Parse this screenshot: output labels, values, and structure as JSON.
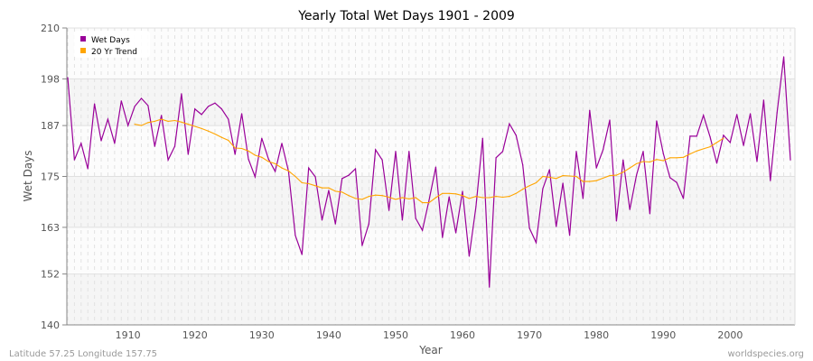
{
  "chart_data": {
    "type": "line",
    "title": "Yearly Total Wet Days 1901 - 2009",
    "xlabel": "Year",
    "ylabel": "Wet Days",
    "ylim": [
      140,
      210
    ],
    "xlim": [
      1901,
      2009
    ],
    "yticks": [
      140,
      152,
      163,
      175,
      187,
      198,
      210
    ],
    "xticks": [
      1910,
      1920,
      1930,
      1940,
      1950,
      1960,
      1970,
      1980,
      1990,
      2000
    ],
    "grid": true,
    "legend_position": "top-left",
    "series": [
      {
        "name": "Wet Days",
        "color": "#990099",
        "x_start": 1901,
        "values": [
          198.3,
          178.9,
          182.8,
          176.8,
          192.1,
          183.4,
          188.5,
          182.8,
          192.8,
          187.0,
          191.5,
          193.4,
          191.7,
          182.1,
          189.4,
          178.9,
          182.1,
          194.5,
          180.2,
          190.9,
          189.6,
          191.5,
          192.3,
          190.9,
          188.5,
          180.2,
          189.8,
          179.1,
          174.9,
          184.0,
          179.1,
          176.2,
          182.8,
          176.2,
          161.1,
          156.6,
          177.0,
          174.9,
          164.7,
          171.7,
          163.8,
          174.5,
          175.3,
          176.8,
          158.7,
          163.8,
          181.3,
          178.9,
          167.0,
          180.9,
          164.7,
          180.9,
          165.1,
          162.3,
          169.4,
          177.2,
          160.6,
          170.2,
          161.7,
          171.5,
          156.2,
          167.9,
          184.0,
          148.9,
          179.4,
          180.9,
          187.4,
          184.7,
          177.7,
          162.8,
          159.4,
          172.1,
          176.6,
          163.2,
          173.4,
          161.1,
          180.9,
          169.8,
          190.6,
          177.0,
          181.3,
          188.3,
          164.5,
          178.9,
          167.2,
          175.3,
          180.9,
          166.2,
          188.1,
          180.4,
          174.7,
          173.6,
          169.8,
          184.5,
          184.5,
          189.4,
          184.3,
          178.1,
          184.7,
          183.0,
          189.6,
          182.3,
          189.8,
          178.5,
          193.0,
          174.0,
          190.0,
          203.2,
          178.9
        ]
      },
      {
        "name": "20 Yr Trend",
        "color": "#ffa500",
        "x_start": 1911,
        "values": [
          187.3,
          187.0,
          187.7,
          188.0,
          188.5,
          188.0,
          188.2,
          187.8,
          187.3,
          186.8,
          186.3,
          185.7,
          185.0,
          184.2,
          183.5,
          181.7,
          181.6,
          181.0,
          180.0,
          179.5,
          178.5,
          178.0,
          177.0,
          176.3,
          175.0,
          173.5,
          173.3,
          172.8,
          172.3,
          172.3,
          171.5,
          171.3,
          170.5,
          169.8,
          169.6,
          170.3,
          170.6,
          170.5,
          170.1,
          169.6,
          170.0,
          169.7,
          170.0,
          168.8,
          168.8,
          170.0,
          171.0,
          171.0,
          170.9,
          170.5,
          169.8,
          170.3,
          170.0,
          170.0,
          170.3,
          170.1,
          170.3,
          171.0,
          172.0,
          172.8,
          173.5,
          175.0,
          174.8,
          174.5,
          175.2,
          175.1,
          175.0,
          173.8,
          173.8,
          174.0,
          174.6,
          175.2,
          175.3,
          176.0,
          177.0,
          178.0,
          178.5,
          178.4,
          179.0,
          178.7,
          179.4,
          179.4,
          179.5,
          180.3,
          181.0,
          181.5,
          182.0,
          183.0,
          184.0
        ]
      }
    ]
  },
  "footer": {
    "location": "Latitude 57.25 Longitude 157.75",
    "source": "worldspecies.org"
  }
}
